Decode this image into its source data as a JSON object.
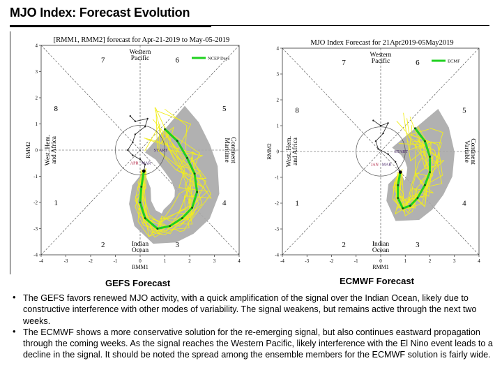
{
  "title": "MJO Index: Forecast Evolution",
  "panels": [
    {
      "id": "gefs",
      "plot_title": "[RMM1, RMM2] forecast for Apr-21-2019 to May-05-2019",
      "caption": "GEFS Forecast",
      "legend_label": "NCEP Days",
      "xlabel": "RMM1",
      "ylabel": "RMM2",
      "x_ticks": [
        "-4",
        "-3",
        "-2",
        "-1",
        "0",
        "1",
        "2",
        "3",
        "4"
      ],
      "y_ticks": [
        "4",
        "3",
        "2",
        "1",
        "0",
        "-1",
        "-2",
        "-3",
        "-4"
      ],
      "phase_numbers": [
        "1",
        "2",
        "3",
        "4",
        "5",
        "6",
        "7",
        "8"
      ],
      "region_labels": {
        "top": [
          "Western",
          "Pacific"
        ],
        "bottom": [
          "Indian",
          "Ocean"
        ],
        "left": [
          "West. Hem.",
          "and Africa"
        ],
        "right": [
          "Maritime",
          "Continent"
        ]
      },
      "markers": {
        "start": "START",
        "months": [
          "APR",
          "MAR"
        ]
      },
      "colors": {
        "spread": "#a9a9a9",
        "member": "#f2ee1c",
        "mean": "#1fd11f",
        "unit_circle": "#555555"
      },
      "forecast_mean": [
        [
          0.15,
          -0.8
        ],
        [
          0.05,
          -1.4
        ],
        [
          0.0,
          -2.0
        ],
        [
          0.2,
          -2.6
        ],
        [
          0.7,
          -3.0
        ],
        [
          1.2,
          -2.9
        ],
        [
          1.7,
          -2.6
        ],
        [
          2.1,
          -2.2
        ],
        [
          2.3,
          -1.6
        ],
        [
          2.2,
          -0.9
        ],
        [
          1.9,
          -0.3
        ],
        [
          1.5,
          0.35
        ],
        [
          1.0,
          0.8
        ]
      ],
      "observed": [
        [
          -0.4,
          1.3
        ],
        [
          -0.2,
          1.1
        ],
        [
          0.3,
          1.2
        ],
        [
          0.2,
          0.9
        ],
        [
          -0.2,
          0.6
        ],
        [
          -0.3,
          0.3
        ],
        [
          -0.5,
          0.0
        ],
        [
          -0.3,
          -0.2
        ],
        [
          0.0,
          -0.35
        ],
        [
          0.2,
          -0.55
        ],
        [
          0.15,
          -0.8
        ]
      ]
    },
    {
      "id": "ecmwf",
      "plot_title": "MJO Index Forecast for 21Apr2019-05May2019",
      "caption": "ECMWF Forecast",
      "legend_label": "ECMF",
      "xlabel": "RMM1",
      "ylabel": "RMM2",
      "x_ticks": [
        "-4",
        "-3",
        "-2",
        "-1",
        "0",
        "1",
        "2",
        "3",
        "4"
      ],
      "y_ticks": [
        "4",
        "3",
        "2",
        "1",
        "0",
        "-1",
        "-2",
        "-3",
        "-4"
      ],
      "phase_numbers": [
        "1",
        "2",
        "3",
        "4",
        "5",
        "6",
        "7",
        "8"
      ],
      "region_labels": {
        "top": [
          "Western",
          "Pacific"
        ],
        "bottom": [
          "Indian",
          "Ocean"
        ],
        "left": [
          "West. Hem.",
          "and Africa"
        ],
        "right": [
          "Variable",
          "Continent"
        ]
      },
      "markers": {
        "start": "START",
        "months": [
          "JAN",
          "MAR"
        ]
      },
      "colors": {
        "spread": "#a9a9a9",
        "member": "#f2ee1c",
        "mean": "#1fd11f",
        "unit_circle": "#555555"
      },
      "forecast_mean": [
        [
          0.8,
          -0.8
        ],
        [
          0.7,
          -1.3
        ],
        [
          0.7,
          -1.8
        ],
        [
          0.9,
          -2.2
        ],
        [
          1.2,
          -2.1
        ],
        [
          1.5,
          -1.8
        ],
        [
          1.8,
          -1.3
        ],
        [
          2.0,
          -0.8
        ],
        [
          2.0,
          -0.2
        ],
        [
          1.8,
          0.4
        ],
        [
          1.4,
          0.9
        ]
      ],
      "observed": [
        [
          -0.3,
          1.2
        ],
        [
          0.0,
          1.0
        ],
        [
          0.3,
          1.1
        ],
        [
          0.1,
          0.7
        ],
        [
          -0.2,
          0.4
        ],
        [
          -0.1,
          0.1
        ],
        [
          0.3,
          -0.1
        ],
        [
          0.6,
          -0.4
        ],
        [
          0.8,
          -0.8
        ]
      ]
    }
  ],
  "bullets": [
    "The GEFS favors renewed MJO activity, with a quick amplification of the signal over the Indian Ocean, likely due to constructive interference with other modes of variability. The signal weakens, but remains active through the next two weeks.",
    "The ECMWF shows a more conservative solution for the re-emerging signal, but also continues eastward propagation through the coming weeks. As the signal reaches the Western Pacific, likely interference with the El Nino event leads to a decline in the signal. It should be noted the spread among the ensemble members for the ECMWF solution is fairly wide."
  ]
}
